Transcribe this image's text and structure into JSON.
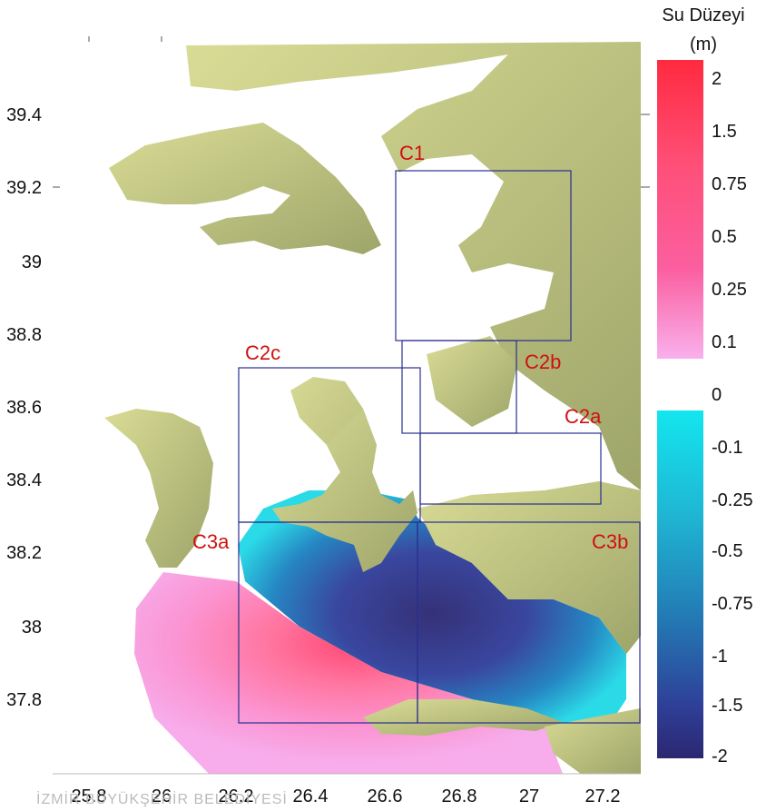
{
  "map": {
    "x_ticks": [
      "25.8",
      "26",
      "26.2",
      "26.4",
      "26.6",
      "26.8",
      "27",
      "27.2"
    ],
    "y_ticks": [
      "39.4",
      "39.2",
      "39",
      "38.8",
      "38.6",
      "38.4",
      "38.2",
      "38",
      "37.8"
    ],
    "boxes": [
      {
        "id": "C1",
        "label": "C1"
      },
      {
        "id": "C2a",
        "label": "C2a"
      },
      {
        "id": "C2b",
        "label": "C2b"
      },
      {
        "id": "C2c",
        "label": "C2c"
      },
      {
        "id": "C3a",
        "label": "C3a"
      },
      {
        "id": "C3b",
        "label": "C3b"
      }
    ],
    "colors": {
      "land": "#c8cc86",
      "land_dark": "#5a6a3a",
      "water": "#ffffff",
      "positive_light": "#f7a4e6",
      "positive_strong": "#ff2a55",
      "negative_light": "#1fe0ea",
      "negative_strong": "#2b2a72",
      "box_stroke": "#2a2f8f"
    }
  },
  "legend": {
    "title_line1": "Su Düzeyi",
    "title_line2": "(m)",
    "positive_labels": [
      "2",
      "1.5",
      "0.75",
      "0.5",
      "0.25",
      "0.1"
    ],
    "negative_labels": [
      "0",
      "-0.1",
      "-0.25",
      "-0.5",
      "-0.75",
      "-1",
      "-1.5",
      "-2"
    ]
  },
  "watermark": "İZMİR BÜYÜKŞEHİR BELEDİYESİ"
}
